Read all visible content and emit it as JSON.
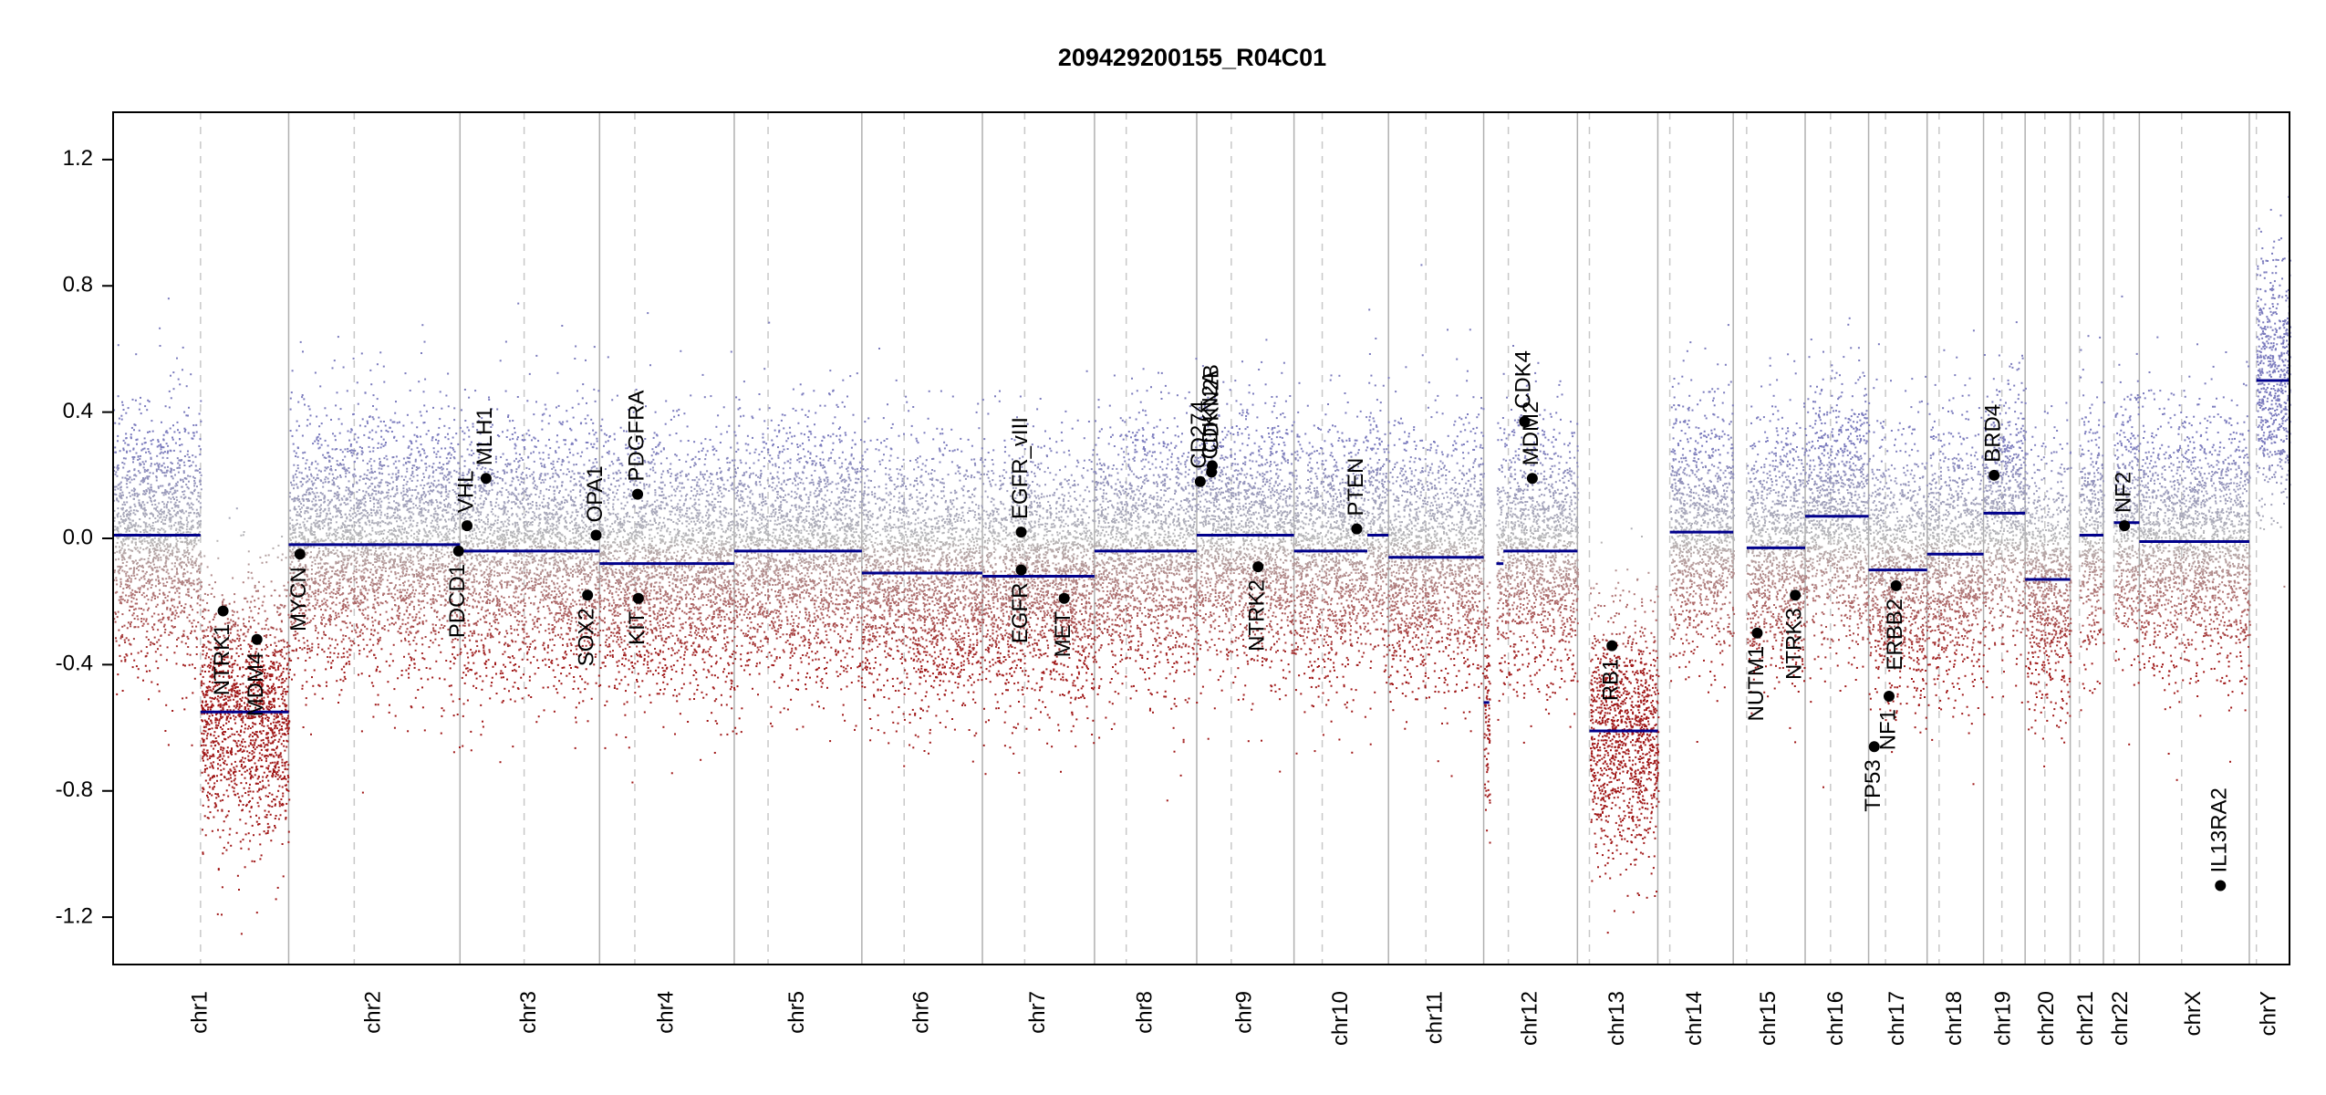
{
  "chart_data": {
    "type": "scatter",
    "title": "209429200155_R04C01",
    "xlabel": "",
    "ylabel": "",
    "ylim": [
      -1.35,
      1.35
    ],
    "y_ticks": [
      -1.2,
      -0.8,
      -0.4,
      0.0,
      0.4,
      0.8,
      1.2
    ],
    "y_tick_labels": [
      "-1.2",
      "-0.8",
      "-0.4",
      "0.0",
      "0.4",
      "0.8",
      "1.2"
    ],
    "x_axis": "genomic position (Mb, cumulative)",
    "grid": false,
    "legend": "none",
    "colors": {
      "segment": "#00008b",
      "gain_points": "#7b7bbd",
      "loss_points": "#a01818",
      "neutral_points": "#b8b8b8",
      "chrom_boundary": "#b0b0b0",
      "centromere": "#c8c8c8",
      "gene_marker": "#000000"
    },
    "chromosomes": [
      {
        "name": "chr1",
        "length": 249,
        "centromere": 124
      },
      {
        "name": "chr2",
        "length": 243,
        "centromere": 93
      },
      {
        "name": "chr3",
        "length": 198,
        "centromere": 91
      },
      {
        "name": "chr4",
        "length": 191,
        "centromere": 50
      },
      {
        "name": "chr5",
        "length": 181,
        "centromere": 48
      },
      {
        "name": "chr6",
        "length": 171,
        "centromere": 60
      },
      {
        "name": "chr7",
        "length": 159,
        "centromere": 60
      },
      {
        "name": "chr8",
        "length": 145,
        "centromere": 45
      },
      {
        "name": "chr9",
        "length": 138,
        "centromere": 49
      },
      {
        "name": "chr10",
        "length": 134,
        "centromere": 40
      },
      {
        "name": "chr11",
        "length": 135,
        "centromere": 53
      },
      {
        "name": "chr12",
        "length": 133,
        "centromere": 35
      },
      {
        "name": "chr13",
        "length": 114,
        "centromere": 17
      },
      {
        "name": "chr14",
        "length": 107,
        "centromere": 17
      },
      {
        "name": "chr15",
        "length": 102,
        "centromere": 19
      },
      {
        "name": "chr16",
        "length": 90,
        "centromere": 36
      },
      {
        "name": "chr17",
        "length": 83,
        "centromere": 24
      },
      {
        "name": "chr18",
        "length": 80,
        "centromere": 17
      },
      {
        "name": "chr19",
        "length": 59,
        "centromere": 26
      },
      {
        "name": "chr20",
        "length": 64,
        "centromere": 28
      },
      {
        "name": "chr21",
        "length": 47,
        "centromere": 13
      },
      {
        "name": "chr22",
        "length": 51,
        "centromere": 15
      },
      {
        "name": "chrX",
        "length": 156,
        "centromere": 60
      },
      {
        "name": "chrY",
        "length": 57,
        "centromere": 10
      }
    ],
    "segments": [
      {
        "chr": "chr1",
        "start": 0,
        "end": 124,
        "value": 0.01
      },
      {
        "chr": "chr1",
        "start": 124,
        "end": 249,
        "value": -0.55
      },
      {
        "chr": "chr2",
        "start": 0,
        "end": 243,
        "value": -0.02
      },
      {
        "chr": "chr3",
        "start": 0,
        "end": 198,
        "value": -0.04
      },
      {
        "chr": "chr4",
        "start": 0,
        "end": 191,
        "value": -0.08
      },
      {
        "chr": "chr5",
        "start": 0,
        "end": 181,
        "value": -0.04
      },
      {
        "chr": "chr6",
        "start": 0,
        "end": 171,
        "value": -0.11
      },
      {
        "chr": "chr7",
        "start": 0,
        "end": 159,
        "value": -0.12
      },
      {
        "chr": "chr8",
        "start": 0,
        "end": 145,
        "value": -0.04
      },
      {
        "chr": "chr9",
        "start": 0,
        "end": 138,
        "value": 0.01
      },
      {
        "chr": "chr10",
        "start": 0,
        "end": 104,
        "value": -0.04
      },
      {
        "chr": "chr10",
        "start": 104,
        "end": 134,
        "value": 0.01
      },
      {
        "chr": "chr11",
        "start": 0,
        "end": 135,
        "value": -0.06
      },
      {
        "chr": "chr12",
        "start": 0,
        "end": 8,
        "value": -0.52
      },
      {
        "chr": "chr12",
        "start": 18,
        "end": 28,
        "value": -0.08
      },
      {
        "chr": "chr12",
        "start": 28,
        "end": 133,
        "value": -0.04
      },
      {
        "chr": "chr13",
        "start": 17,
        "end": 114,
        "value": -0.61
      },
      {
        "chr": "chr14",
        "start": 17,
        "end": 107,
        "value": 0.02
      },
      {
        "chr": "chr15",
        "start": 19,
        "end": 102,
        "value": -0.03
      },
      {
        "chr": "chr16",
        "start": 0,
        "end": 90,
        "value": 0.07
      },
      {
        "chr": "chr17",
        "start": 0,
        "end": 83,
        "value": -0.1
      },
      {
        "chr": "chr18",
        "start": 0,
        "end": 80,
        "value": -0.05
      },
      {
        "chr": "chr19",
        "start": 0,
        "end": 59,
        "value": 0.08
      },
      {
        "chr": "chr20",
        "start": 0,
        "end": 64,
        "value": -0.13
      },
      {
        "chr": "chr21",
        "start": 13,
        "end": 47,
        "value": 0.01
      },
      {
        "chr": "chr22",
        "start": 15,
        "end": 51,
        "value": 0.05
      },
      {
        "chr": "chrX",
        "start": 0,
        "end": 156,
        "value": -0.01
      },
      {
        "chr": "chrY",
        "start": 10,
        "end": 57,
        "value": 0.5
      }
    ],
    "genes": [
      {
        "name": "NTRK1",
        "chr": "chr1",
        "pos": 156,
        "value": -0.23,
        "label_side": "below"
      },
      {
        "name": "MDM4",
        "chr": "chr1",
        "pos": 204,
        "value": -0.32,
        "label_side": "below"
      },
      {
        "name": "MYCN",
        "chr": "chr2",
        "pos": 16,
        "value": -0.05,
        "label_side": "below"
      },
      {
        "name": "PDCD1",
        "chr": "chr2",
        "pos": 241,
        "value": -0.04,
        "label_side": "below"
      },
      {
        "name": "VHL",
        "chr": "chr3",
        "pos": 10,
        "value": 0.04,
        "label_side": "above"
      },
      {
        "name": "MLH1",
        "chr": "chr3",
        "pos": 37,
        "value": 0.19,
        "label_side": "above"
      },
      {
        "name": "SOX2",
        "chr": "chr3",
        "pos": 181,
        "value": -0.18,
        "label_side": "below"
      },
      {
        "name": "OPA1",
        "chr": "chr3",
        "pos": 193,
        "value": 0.01,
        "label_side": "above"
      },
      {
        "name": "KIT",
        "chr": "chr4",
        "pos": 55,
        "value": -0.19,
        "label_side": "below"
      },
      {
        "name": "PDGFRA",
        "chr": "chr4",
        "pos": 54,
        "value": 0.14,
        "label_side": "above"
      },
      {
        "name": "EGFR_vIII",
        "chr": "chr7",
        "pos": 55,
        "value": 0.02,
        "label_side": "above"
      },
      {
        "name": "EGFR",
        "chr": "chr7",
        "pos": 55,
        "value": -0.1,
        "label_side": "below"
      },
      {
        "name": "MET",
        "chr": "chr7",
        "pos": 116,
        "value": -0.19,
        "label_side": "below"
      },
      {
        "name": "CD274",
        "chr": "chr9",
        "pos": 5,
        "value": 0.18,
        "label_side": "above"
      },
      {
        "name": "CDKN2A",
        "chr": "chr9",
        "pos": 21,
        "value": 0.21,
        "label_side": "above"
      },
      {
        "name": "CDKN2B",
        "chr": "chr9",
        "pos": 22,
        "value": 0.23,
        "label_side": "above"
      },
      {
        "name": "NTRK2",
        "chr": "chr9",
        "pos": 87,
        "value": -0.09,
        "label_side": "below"
      },
      {
        "name": "PTEN",
        "chr": "chr10",
        "pos": 89,
        "value": 0.03,
        "label_side": "above"
      },
      {
        "name": "MDM2",
        "chr": "chr12",
        "pos": 69,
        "value": 0.19,
        "label_side": "above"
      },
      {
        "name": "CDK4",
        "chr": "chr12",
        "pos": 58,
        "value": 0.37,
        "label_side": "above"
      },
      {
        "name": "RB1",
        "chr": "chr13",
        "pos": 49,
        "value": -0.34,
        "label_side": "below"
      },
      {
        "name": "NUTM1",
        "chr": "chr15",
        "pos": 34,
        "value": -0.3,
        "label_side": "below"
      },
      {
        "name": "NTRK3",
        "chr": "chr15",
        "pos": 88,
        "value": -0.18,
        "label_side": "below"
      },
      {
        "name": "TP53",
        "chr": "chr17",
        "pos": 8,
        "value": -0.66,
        "label_side": "below"
      },
      {
        "name": "NF1",
        "chr": "chr17",
        "pos": 29,
        "value": -0.5,
        "label_side": "below"
      },
      {
        "name": "ERBB2",
        "chr": "chr17",
        "pos": 39,
        "value": -0.15,
        "label_side": "below"
      },
      {
        "name": "BRD4",
        "chr": "chr19",
        "pos": 15,
        "value": 0.2,
        "label_side": "above"
      },
      {
        "name": "NF2",
        "chr": "chr22",
        "pos": 30,
        "value": 0.04,
        "label_side": "above"
      },
      {
        "name": "IL13RA2",
        "chr": "chrX",
        "pos": 115,
        "value": -1.1,
        "label_side": "above"
      }
    ]
  }
}
